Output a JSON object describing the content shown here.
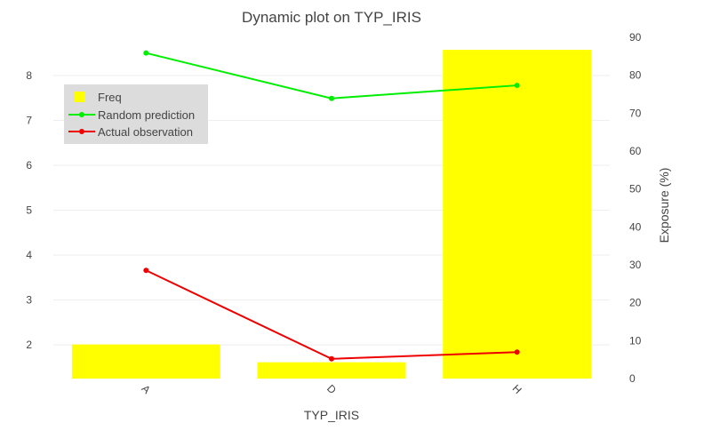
{
  "chart_data": {
    "type": "bar",
    "title": "Dynamic plot on TYP_IRIS",
    "xlabel": "TYP_IRIS",
    "ylabel": "",
    "y2label": "Exposure (%)",
    "categories": [
      "A",
      "D",
      "H"
    ],
    "ylim": [
      1.25,
      8.85
    ],
    "y_ticks": [
      2,
      3,
      4,
      5,
      6,
      7,
      8
    ],
    "y2lim": [
      0,
      90
    ],
    "y2_ticks": [
      0,
      10,
      20,
      30,
      40,
      50,
      60,
      70,
      80,
      90
    ],
    "grid": true,
    "legend_position": "top-left",
    "bars": {
      "name": "Freq",
      "axis": "right",
      "color": "#ffff00",
      "values": [
        9,
        4.3,
        86.7
      ]
    },
    "series": [
      {
        "name": "Random prediction",
        "axis": "left",
        "color": "#00ee00",
        "values": [
          8.5,
          7.49,
          7.78
        ]
      },
      {
        "name": "Actual observation",
        "axis": "left",
        "color": "#ee0000",
        "values": [
          3.66,
          1.69,
          1.84
        ]
      }
    ]
  }
}
